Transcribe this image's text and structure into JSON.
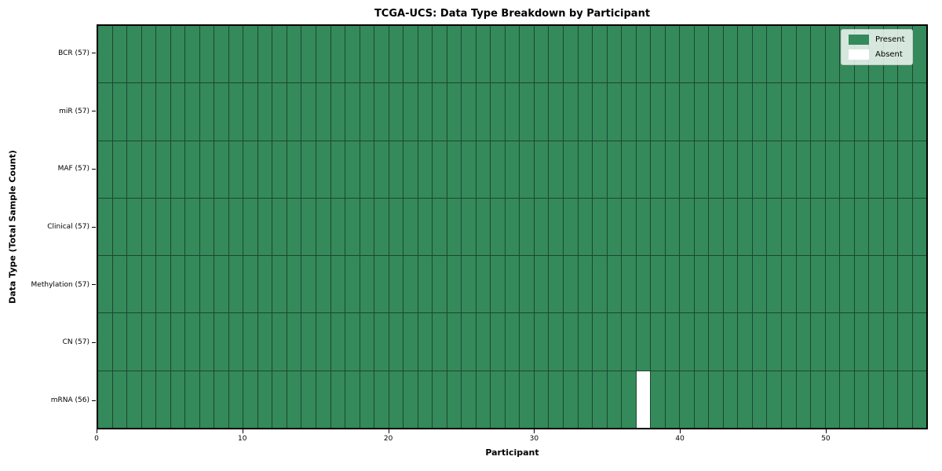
{
  "chart_data": {
    "type": "heatmap",
    "title": "TCGA-UCS: Data Type Breakdown by Participant",
    "xlabel": "Participant",
    "ylabel": "Data Type (Total Sample Count)",
    "x_range": [
      0,
      57
    ],
    "n_participants": 57,
    "x_ticks": [
      0,
      10,
      20,
      30,
      40,
      50
    ],
    "grid": true,
    "legend_position": "upper right",
    "rows": [
      {
        "name": "BCR",
        "label": "BCR (57)",
        "total": 57,
        "absent_participants": []
      },
      {
        "name": "miR",
        "label": "miR (57)",
        "total": 57,
        "absent_participants": []
      },
      {
        "name": "MAF",
        "label": "MAF (57)",
        "total": 57,
        "absent_participants": []
      },
      {
        "name": "Clinical",
        "label": "Clinical (57)",
        "total": 57,
        "absent_participants": []
      },
      {
        "name": "Methylation",
        "label": "Methylation (57)",
        "total": 57,
        "absent_participants": []
      },
      {
        "name": "CN",
        "label": "CN (57)",
        "total": 57,
        "absent_participants": []
      },
      {
        "name": "mRNA",
        "label": "mRNA (56)",
        "total": 56,
        "absent_participants": [
          37
        ]
      }
    ],
    "legend": [
      {
        "name": "present",
        "label": "Present",
        "color": "#348a5a"
      },
      {
        "name": "absent",
        "label": "Absent",
        "color": "#ffffff"
      }
    ],
    "colors": {
      "present": "#348a5a",
      "absent": "#ffffff",
      "grid_line": "#1e4630",
      "spine": "#000000"
    }
  }
}
